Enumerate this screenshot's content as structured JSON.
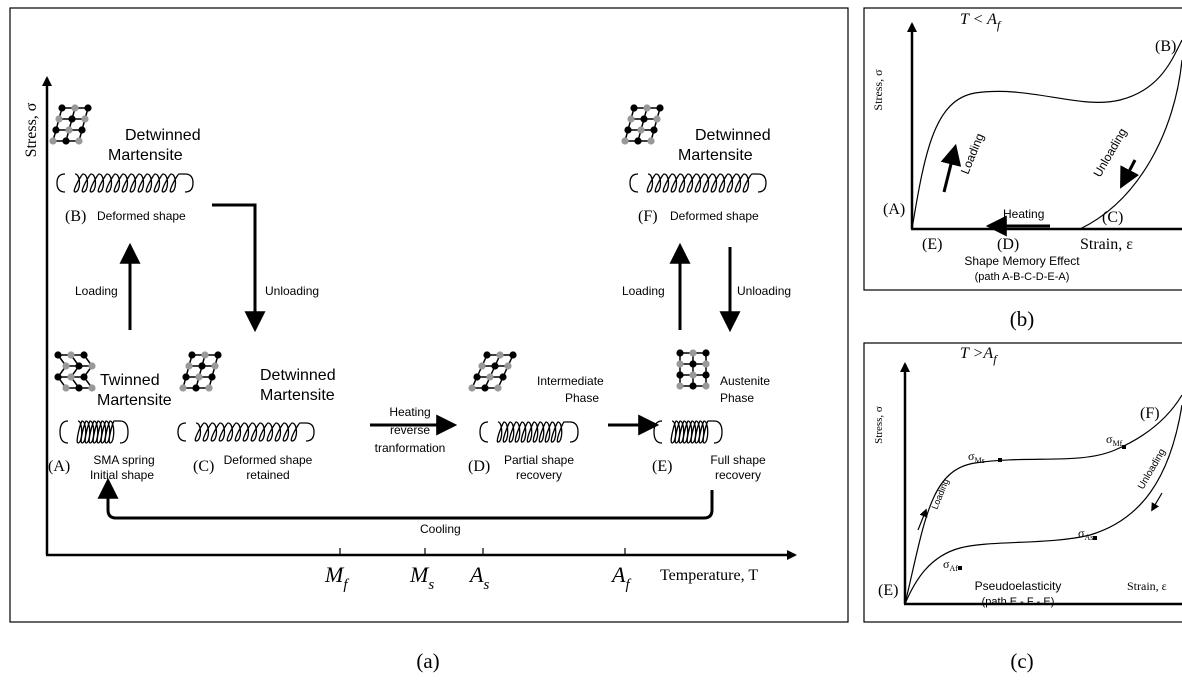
{
  "panel_a": {
    "caption": "(a)",
    "y_axis_label": "Stress, σ",
    "x_axis_label": "Temperature, T",
    "temperatures": [
      {
        "main": "M",
        "sub": "f"
      },
      {
        "main": "M",
        "sub": "s"
      },
      {
        "main": "A",
        "sub": "s"
      },
      {
        "main": "A",
        "sub": "f"
      }
    ],
    "states": [
      {
        "id": "(B)",
        "phase": [
          "Detwinned",
          "Martensite"
        ],
        "shape": [
          "Deformed shape"
        ]
      },
      {
        "id": "(A)",
        "phase": [
          "Twinned",
          "Martensite"
        ],
        "shape": [
          "SMA spring",
          "Initial shape"
        ]
      },
      {
        "id": "(C)",
        "phase": [
          "Detwinned",
          "Martensite"
        ],
        "shape": [
          "Deformed shape",
          "retained"
        ]
      },
      {
        "id": "(D)",
        "phase": [
          "Intermediate",
          "Phase"
        ],
        "shape": [
          "Partial shape",
          "recovery"
        ]
      },
      {
        "id": "(E)",
        "phase": [
          "Austenite",
          "Phase"
        ],
        "shape": [
          "Full shape",
          "recovery"
        ]
      },
      {
        "id": "(F)",
        "phase": [
          "Detwinned",
          "Martensite"
        ],
        "shape": [
          "Deformed shape"
        ]
      }
    ],
    "arrows": {
      "loading_left": "Loading",
      "unloading_left": "Unloading",
      "heating": [
        "Heating",
        "reverse",
        "tranformation"
      ],
      "cooling": "Cooling",
      "loading_right": "Loading",
      "unloading_right": "Unloading"
    }
  },
  "panel_b": {
    "caption": "(b)",
    "condition": {
      "main": "T < A",
      "sub": "f"
    },
    "y_axis_label": "Stress, σ",
    "x_axis_label": "Strain, ε",
    "points": [
      "(A)",
      "(B)",
      "(C)",
      "(D)",
      "(E)"
    ],
    "loading": "Loading",
    "unloading": "Unloading",
    "heating": "Heating",
    "footer": [
      "Shape Memory Effect",
      "(path A-B-C-D-E-A)"
    ]
  },
  "panel_c": {
    "caption": "(c)",
    "condition": {
      "main": "T >A",
      "sub": "f"
    },
    "y_axis_label": "Stress, σ",
    "x_axis_label": "Strain, ε",
    "points": [
      "(E)",
      "(F)"
    ],
    "stresses": [
      {
        "main": "σ",
        "sub": "Ms"
      },
      {
        "main": "σ",
        "sub": "Mf"
      },
      {
        "main": "σ",
        "sub": "As"
      },
      {
        "main": "σ",
        "sub": "Af"
      }
    ],
    "loading": "Loading",
    "unloading": "Unloading",
    "footer": [
      "Pseudoelasticity",
      "(path E - F - E)"
    ]
  }
}
